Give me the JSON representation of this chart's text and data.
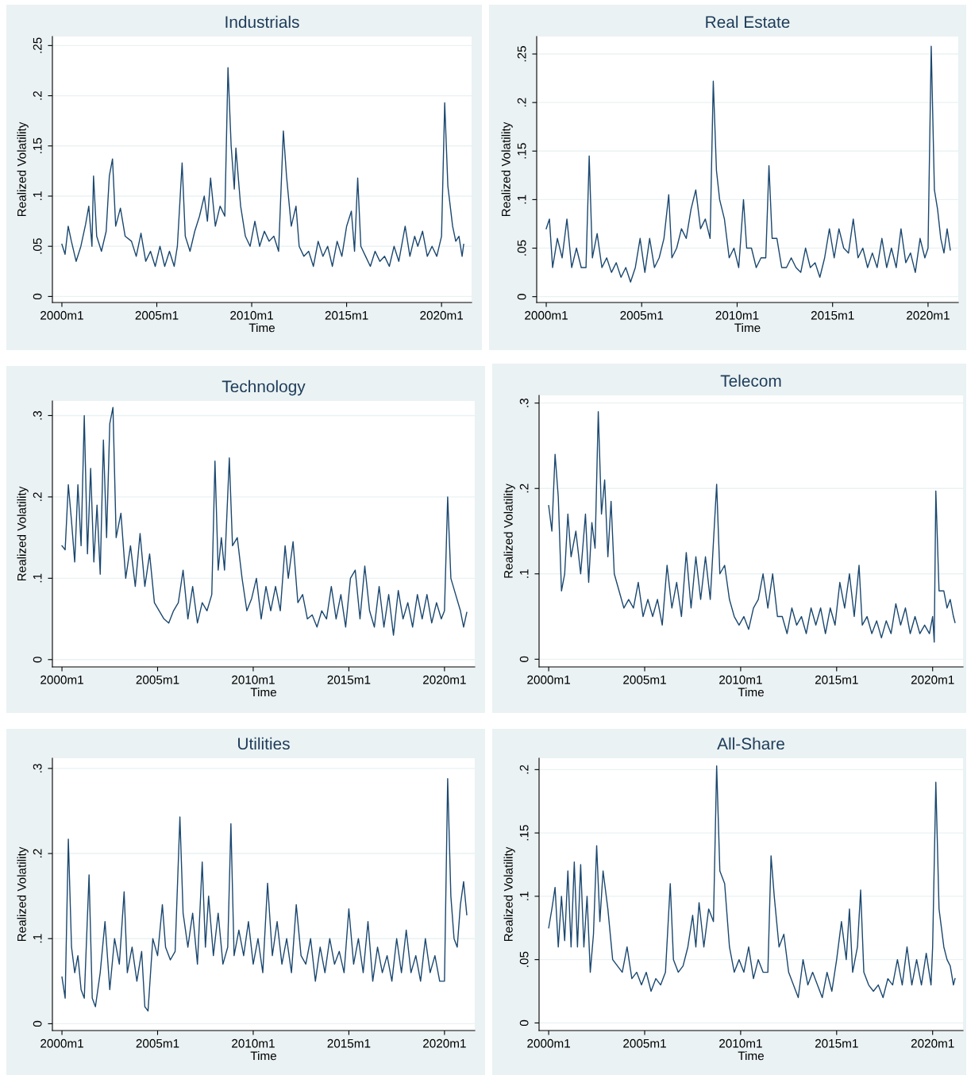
{
  "chart_data": [
    {
      "type": "line",
      "title": "Industrials",
      "xlabel": "Time",
      "ylabel": "Realized Volatility",
      "grid": "y",
      "marker": "none",
      "line_style": "solid",
      "xlim": [
        "1999-07",
        "2021-08"
      ],
      "xticks": [
        {
          "value": "2000-01",
          "label": "2000m1"
        },
        {
          "value": "2005-01",
          "label": "2005m1"
        },
        {
          "value": "2010-01",
          "label": "2010m1"
        },
        {
          "value": "2015-01",
          "label": "2015m1"
        },
        {
          "value": "2020-01",
          "label": "2020m1"
        }
      ],
      "ylim": [
        -0.006,
        0.259
      ],
      "yticks": [
        0,
        {
          "value": 0.05,
          "label": ".05"
        },
        {
          "value": 0.1,
          "label": ".1"
        },
        {
          "value": 0.15,
          "label": ".15"
        },
        {
          "value": 0.2,
          "label": ".2"
        },
        {
          "value": 0.25,
          "label": ".25"
        }
      ],
      "series": [
        {
          "color": "#1a476f",
          "x": [
            "2000-01",
            "2000-03",
            "2000-05",
            "2000-07",
            "2000-10",
            "2001-01",
            "2001-04",
            "2001-06",
            "2001-08",
            "2001-09",
            "2001-11",
            "2002-02",
            "2002-05",
            "2002-07",
            "2002-09",
            "2002-11",
            "2003-02",
            "2003-05",
            "2003-09",
            "2003-12",
            "2004-03",
            "2004-06",
            "2004-09",
            "2004-12",
            "2005-03",
            "2005-06",
            "2005-09",
            "2005-12",
            "2006-02",
            "2006-05",
            "2006-07",
            "2006-10",
            "2007-01",
            "2007-04",
            "2007-07",
            "2007-09",
            "2007-11",
            "2008-02",
            "2008-05",
            "2008-08",
            "2008-10",
            "2008-12",
            "2009-02",
            "2009-03",
            "2009-06",
            "2009-09",
            "2009-12",
            "2010-03",
            "2010-06",
            "2010-09",
            "2010-12",
            "2011-03",
            "2011-06",
            "2011-09",
            "2011-11",
            "2012-02",
            "2012-05",
            "2012-07",
            "2012-10",
            "2013-01",
            "2013-04",
            "2013-07",
            "2013-10",
            "2014-01",
            "2014-04",
            "2014-07",
            "2014-10",
            "2015-01",
            "2015-04",
            "2015-06",
            "2015-08",
            "2015-10",
            "2016-01",
            "2016-04",
            "2016-07",
            "2016-10",
            "2017-01",
            "2017-04",
            "2017-07",
            "2017-10",
            "2018-02",
            "2018-05",
            "2018-08",
            "2018-10",
            "2019-01",
            "2019-04",
            "2019-07",
            "2019-10",
            "2020-01",
            "2020-03",
            "2020-05",
            "2020-08",
            "2020-10",
            "2020-12",
            "2021-02",
            "2021-03"
          ],
          "values": [
            0.052,
            0.042,
            0.07,
            0.055,
            0.035,
            0.05,
            0.072,
            0.09,
            0.05,
            0.12,
            0.06,
            0.045,
            0.065,
            0.12,
            0.137,
            0.07,
            0.088,
            0.06,
            0.055,
            0.04,
            0.063,
            0.035,
            0.045,
            0.03,
            0.05,
            0.03,
            0.045,
            0.03,
            0.05,
            0.133,
            0.06,
            0.045,
            0.065,
            0.08,
            0.1,
            0.075,
            0.118,
            0.07,
            0.09,
            0.08,
            0.228,
            0.15,
            0.107,
            0.148,
            0.09,
            0.06,
            0.05,
            0.075,
            0.05,
            0.065,
            0.055,
            0.06,
            0.045,
            0.165,
            0.12,
            0.07,
            0.09,
            0.05,
            0.04,
            0.045,
            0.03,
            0.055,
            0.04,
            0.05,
            0.03,
            0.055,
            0.04,
            0.07,
            0.085,
            0.045,
            0.118,
            0.05,
            0.04,
            0.03,
            0.045,
            0.035,
            0.04,
            0.03,
            0.05,
            0.035,
            0.07,
            0.04,
            0.06,
            0.05,
            0.065,
            0.04,
            0.05,
            0.04,
            0.06,
            0.193,
            0.11,
            0.07,
            0.055,
            0.06,
            0.04,
            0.052
          ]
        }
      ]
    },
    {
      "type": "line",
      "title": "Real Estate",
      "xlabel": "Time",
      "ylabel": "Realized Volatility",
      "grid": "y",
      "marker": "none",
      "line_style": "solid",
      "xlim": [
        "1999-07",
        "2021-08"
      ],
      "xticks": [
        {
          "value": "2000-01",
          "label": "2000m1"
        },
        {
          "value": "2005-01",
          "label": "2005m1"
        },
        {
          "value": "2010-01",
          "label": "2010m1"
        },
        {
          "value": "2015-01",
          "label": "2015m1"
        },
        {
          "value": "2020-01",
          "label": "2020m1"
        }
      ],
      "ylim": [
        -0.006,
        0.268
      ],
      "yticks": [
        0,
        {
          "value": 0.05,
          "label": ".05"
        },
        {
          "value": 0.1,
          "label": ".1"
        },
        {
          "value": 0.15,
          "label": ".15"
        },
        {
          "value": 0.2,
          "label": ".2"
        },
        {
          "value": 0.25,
          "label": ".25"
        }
      ],
      "series": [
        {
          "color": "#1a476f",
          "x": [
            "2000-01",
            "2000-03",
            "2000-05",
            "2000-08",
            "2000-11",
            "2001-02",
            "2001-05",
            "2001-08",
            "2001-11",
            "2002-02",
            "2002-04",
            "2002-06",
            "2002-09",
            "2002-12",
            "2003-03",
            "2003-06",
            "2003-09",
            "2003-12",
            "2004-03",
            "2004-06",
            "2004-09",
            "2004-12",
            "2005-03",
            "2005-06",
            "2005-09",
            "2005-12",
            "2006-03",
            "2006-06",
            "2006-08",
            "2006-11",
            "2007-02",
            "2007-05",
            "2007-08",
            "2007-11",
            "2008-02",
            "2008-05",
            "2008-08",
            "2008-10",
            "2008-12",
            "2009-02",
            "2009-05",
            "2009-08",
            "2009-11",
            "2010-02",
            "2010-05",
            "2010-07",
            "2010-10",
            "2011-01",
            "2011-04",
            "2011-07",
            "2011-09",
            "2011-11",
            "2012-02",
            "2012-05",
            "2012-08",
            "2012-11",
            "2013-02",
            "2013-05",
            "2013-08",
            "2013-11",
            "2014-02",
            "2014-05",
            "2014-08",
            "2014-11",
            "2015-02",
            "2015-05",
            "2015-08",
            "2015-11",
            "2016-02",
            "2016-05",
            "2016-08",
            "2016-11",
            "2017-02",
            "2017-05",
            "2017-08",
            "2017-11",
            "2018-02",
            "2018-05",
            "2018-08",
            "2018-11",
            "2019-02",
            "2019-05",
            "2019-08",
            "2019-11",
            "2020-01",
            "2020-03",
            "2020-05",
            "2020-07",
            "2020-09",
            "2020-11",
            "2021-01",
            "2021-03"
          ],
          "values": [
            0.07,
            0.08,
            0.03,
            0.06,
            0.04,
            0.08,
            0.03,
            0.05,
            0.03,
            0.03,
            0.145,
            0.04,
            0.065,
            0.03,
            0.04,
            0.025,
            0.035,
            0.02,
            0.03,
            0.015,
            0.03,
            0.06,
            0.025,
            0.06,
            0.03,
            0.04,
            0.06,
            0.105,
            0.04,
            0.05,
            0.07,
            0.06,
            0.09,
            0.11,
            0.07,
            0.08,
            0.06,
            0.222,
            0.13,
            0.1,
            0.08,
            0.04,
            0.05,
            0.03,
            0.1,
            0.05,
            0.05,
            0.03,
            0.04,
            0.04,
            0.135,
            0.06,
            0.06,
            0.03,
            0.03,
            0.04,
            0.03,
            0.025,
            0.05,
            0.03,
            0.035,
            0.02,
            0.04,
            0.07,
            0.04,
            0.07,
            0.05,
            0.045,
            0.08,
            0.04,
            0.05,
            0.03,
            0.045,
            0.03,
            0.06,
            0.03,
            0.05,
            0.03,
            0.07,
            0.035,
            0.045,
            0.025,
            0.06,
            0.04,
            0.05,
            0.258,
            0.11,
            0.09,
            0.06,
            0.045,
            0.07,
            0.048
          ]
        }
      ]
    },
    {
      "type": "line",
      "title": "Technology",
      "xlabel": "Time",
      "ylabel": "Realized Volatility",
      "grid": "y",
      "marker": "none",
      "line_style": "solid",
      "xlim": [
        "1999-07",
        "2021-08"
      ],
      "xticks": [
        {
          "value": "2000-01",
          "label": "2000m1"
        },
        {
          "value": "2005-01",
          "label": "2005m1"
        },
        {
          "value": "2010-01",
          "label": "2010m1"
        },
        {
          "value": "2015-01",
          "label": "2015m1"
        },
        {
          "value": "2020-01",
          "label": "2020m1"
        }
      ],
      "ylim": [
        -0.009,
        0.318
      ],
      "yticks": [
        0,
        {
          "value": 0.1,
          "label": ".1"
        },
        {
          "value": 0.2,
          "label": ".2"
        },
        {
          "value": 0.3,
          "label": ".3"
        }
      ],
      "series": [
        {
          "color": "#1a476f",
          "x": [
            "2000-01",
            "2000-03",
            "2000-05",
            "2000-07",
            "2000-09",
            "2000-11",
            "2001-01",
            "2001-03",
            "2001-05",
            "2001-07",
            "2001-09",
            "2001-11",
            "2002-01",
            "2002-03",
            "2002-05",
            "2002-07",
            "2002-09",
            "2002-11",
            "2003-02",
            "2003-05",
            "2003-08",
            "2003-11",
            "2004-02",
            "2004-05",
            "2004-08",
            "2004-11",
            "2005-02",
            "2005-05",
            "2005-08",
            "2005-11",
            "2006-02",
            "2006-05",
            "2006-08",
            "2006-11",
            "2007-02",
            "2007-05",
            "2007-08",
            "2007-11",
            "2008-01",
            "2008-03",
            "2008-05",
            "2008-07",
            "2008-10",
            "2008-12",
            "2009-03",
            "2009-06",
            "2009-09",
            "2009-12",
            "2010-03",
            "2010-06",
            "2010-09",
            "2010-12",
            "2011-03",
            "2011-06",
            "2011-09",
            "2011-11",
            "2012-02",
            "2012-05",
            "2012-08",
            "2012-11",
            "2013-02",
            "2013-05",
            "2013-08",
            "2013-11",
            "2014-02",
            "2014-05",
            "2014-08",
            "2014-11",
            "2015-02",
            "2015-05",
            "2015-08",
            "2015-11",
            "2016-02",
            "2016-05",
            "2016-08",
            "2016-11",
            "2017-02",
            "2017-05",
            "2017-08",
            "2017-11",
            "2018-02",
            "2018-05",
            "2018-08",
            "2018-11",
            "2019-02",
            "2019-05",
            "2019-08",
            "2019-11",
            "2020-01",
            "2020-03",
            "2020-05",
            "2020-08",
            "2020-11",
            "2021-01",
            "2021-03"
          ],
          "values": [
            0.14,
            0.135,
            0.215,
            0.17,
            0.12,
            0.215,
            0.14,
            0.3,
            0.13,
            0.235,
            0.12,
            0.19,
            0.105,
            0.27,
            0.15,
            0.29,
            0.31,
            0.15,
            0.18,
            0.1,
            0.14,
            0.09,
            0.155,
            0.09,
            0.13,
            0.07,
            0.06,
            0.05,
            0.045,
            0.06,
            0.07,
            0.11,
            0.05,
            0.09,
            0.045,
            0.07,
            0.06,
            0.08,
            0.244,
            0.11,
            0.15,
            0.11,
            0.248,
            0.14,
            0.15,
            0.1,
            0.06,
            0.075,
            0.1,
            0.05,
            0.09,
            0.06,
            0.09,
            0.06,
            0.14,
            0.1,
            0.145,
            0.07,
            0.08,
            0.05,
            0.055,
            0.04,
            0.06,
            0.05,
            0.09,
            0.05,
            0.08,
            0.04,
            0.1,
            0.11,
            0.05,
            0.115,
            0.06,
            0.04,
            0.09,
            0.04,
            0.08,
            0.03,
            0.085,
            0.05,
            0.07,
            0.04,
            0.08,
            0.05,
            0.08,
            0.045,
            0.07,
            0.05,
            0.06,
            0.2,
            0.1,
            0.08,
            0.06,
            0.04,
            0.058
          ]
        }
      ]
    },
    {
      "type": "line",
      "title": "Telecom",
      "xlabel": "Time",
      "ylabel": "Realized Volatility",
      "grid": "y",
      "marker": "none",
      "line_style": "solid",
      "xlim": [
        "1999-07",
        "2021-08"
      ],
      "xticks": [
        {
          "value": "2000-01",
          "label": "2000m1"
        },
        {
          "value": "2005-01",
          "label": "2005m1"
        },
        {
          "value": "2010-01",
          "label": "2010m1"
        },
        {
          "value": "2015-01",
          "label": "2015m1"
        },
        {
          "value": "2020-01",
          "label": "2020m1"
        }
      ],
      "ylim": [
        -0.009,
        0.309
      ],
      "yticks": [
        0,
        {
          "value": 0.1,
          "label": ".1"
        },
        {
          "value": 0.2,
          "label": ".2"
        },
        {
          "value": 0.3,
          "label": ".3"
        }
      ],
      "series": [
        {
          "color": "#1a476f",
          "x": [
            "2000-01",
            "2000-03",
            "2000-05",
            "2000-07",
            "2000-09",
            "2000-11",
            "2001-01",
            "2001-03",
            "2001-06",
            "2001-09",
            "2001-12",
            "2002-02",
            "2002-04",
            "2002-06",
            "2002-08",
            "2002-10",
            "2002-12",
            "2003-02",
            "2003-04",
            "2003-06",
            "2003-09",
            "2003-12",
            "2004-03",
            "2004-06",
            "2004-09",
            "2004-12",
            "2005-03",
            "2005-06",
            "2005-09",
            "2005-12",
            "2006-03",
            "2006-06",
            "2006-09",
            "2006-12",
            "2007-03",
            "2007-06",
            "2007-09",
            "2007-12",
            "2008-03",
            "2008-06",
            "2008-10",
            "2008-12",
            "2009-03",
            "2009-06",
            "2009-09",
            "2009-12",
            "2010-03",
            "2010-06",
            "2010-09",
            "2010-12",
            "2011-03",
            "2011-06",
            "2011-09",
            "2011-12",
            "2012-03",
            "2012-06",
            "2012-09",
            "2012-12",
            "2013-03",
            "2013-06",
            "2013-09",
            "2013-12",
            "2014-03",
            "2014-06",
            "2014-09",
            "2014-12",
            "2015-03",
            "2015-06",
            "2015-09",
            "2015-12",
            "2016-03",
            "2016-05",
            "2016-08",
            "2016-11",
            "2017-02",
            "2017-05",
            "2017-08",
            "2017-11",
            "2018-02",
            "2018-05",
            "2018-08",
            "2018-11",
            "2019-02",
            "2019-05",
            "2019-08",
            "2019-11",
            "2020-01",
            "2020-02",
            "2020-03",
            "2020-05",
            "2020-08",
            "2020-10",
            "2020-12",
            "2021-02",
            "2021-03"
          ],
          "values": [
            0.18,
            0.15,
            0.24,
            0.19,
            0.08,
            0.1,
            0.17,
            0.12,
            0.15,
            0.1,
            0.17,
            0.09,
            0.16,
            0.13,
            0.29,
            0.17,
            0.21,
            0.12,
            0.185,
            0.1,
            0.08,
            0.06,
            0.07,
            0.06,
            0.09,
            0.05,
            0.07,
            0.05,
            0.07,
            0.04,
            0.11,
            0.06,
            0.09,
            0.05,
            0.125,
            0.06,
            0.12,
            0.07,
            0.12,
            0.07,
            0.205,
            0.1,
            0.11,
            0.07,
            0.05,
            0.04,
            0.05,
            0.035,
            0.06,
            0.07,
            0.1,
            0.06,
            0.1,
            0.05,
            0.05,
            0.03,
            0.06,
            0.04,
            0.05,
            0.03,
            0.06,
            0.04,
            0.06,
            0.03,
            0.06,
            0.04,
            0.09,
            0.06,
            0.1,
            0.05,
            0.11,
            0.04,
            0.05,
            0.03,
            0.045,
            0.025,
            0.045,
            0.03,
            0.065,
            0.04,
            0.06,
            0.03,
            0.05,
            0.03,
            0.04,
            0.03,
            0.05,
            0.02,
            0.197,
            0.08,
            0.08,
            0.06,
            0.07,
            0.05,
            0.043
          ]
        }
      ]
    },
    {
      "type": "line",
      "title": "Utilities",
      "xlabel": "Time",
      "ylabel": "Realized Volatility",
      "grid": "y",
      "marker": "none",
      "line_style": "solid",
      "xlim": [
        "1999-07",
        "2021-08"
      ],
      "xticks": [
        {
          "value": "2000-01",
          "label": "2000m1"
        },
        {
          "value": "2005-01",
          "label": "2005m1"
        },
        {
          "value": "2010-01",
          "label": "2010m1"
        },
        {
          "value": "2015-01",
          "label": "2015m1"
        },
        {
          "value": "2020-01",
          "label": "2020m1"
        }
      ],
      "ylim": [
        -0.008,
        0.312
      ],
      "yticks": [
        0,
        {
          "value": 0.1,
          "label": ".1"
        },
        {
          "value": 0.2,
          "label": ".2"
        },
        {
          "value": 0.3,
          "label": ".3"
        }
      ],
      "series": [
        {
          "color": "#1a476f",
          "x": [
            "2000-01",
            "2000-03",
            "2000-05",
            "2000-07",
            "2000-09",
            "2000-11",
            "2001-01",
            "2001-03",
            "2001-06",
            "2001-08",
            "2001-10",
            "2002-01",
            "2002-04",
            "2002-07",
            "2002-10",
            "2003-01",
            "2003-04",
            "2003-06",
            "2003-09",
            "2003-12",
            "2004-03",
            "2004-05",
            "2004-07",
            "2004-10",
            "2005-01",
            "2005-04",
            "2005-06",
            "2005-09",
            "2005-12",
            "2006-03",
            "2006-05",
            "2006-08",
            "2006-11",
            "2007-02",
            "2007-05",
            "2007-07",
            "2007-09",
            "2007-12",
            "2008-03",
            "2008-06",
            "2008-09",
            "2008-11",
            "2009-01",
            "2009-04",
            "2009-07",
            "2009-10",
            "2010-01",
            "2010-04",
            "2010-07",
            "2010-10",
            "2011-01",
            "2011-04",
            "2011-07",
            "2011-10",
            "2012-01",
            "2012-04",
            "2012-07",
            "2012-10",
            "2013-01",
            "2013-04",
            "2013-07",
            "2013-10",
            "2014-01",
            "2014-04",
            "2014-07",
            "2014-10",
            "2015-01",
            "2015-04",
            "2015-07",
            "2015-10",
            "2016-01",
            "2016-04",
            "2016-07",
            "2016-10",
            "2017-01",
            "2017-04",
            "2017-07",
            "2017-10",
            "2018-01",
            "2018-04",
            "2018-07",
            "2018-10",
            "2019-01",
            "2019-04",
            "2019-07",
            "2019-10",
            "2020-01",
            "2020-03",
            "2020-05",
            "2020-07",
            "2020-09",
            "2020-11",
            "2021-01",
            "2021-03"
          ],
          "values": [
            0.055,
            0.03,
            0.217,
            0.09,
            0.06,
            0.08,
            0.04,
            0.03,
            0.175,
            0.03,
            0.02,
            0.06,
            0.12,
            0.04,
            0.1,
            0.07,
            0.155,
            0.06,
            0.09,
            0.05,
            0.085,
            0.02,
            0.015,
            0.1,
            0.08,
            0.14,
            0.09,
            0.075,
            0.085,
            0.243,
            0.13,
            0.09,
            0.13,
            0.07,
            0.19,
            0.09,
            0.15,
            0.08,
            0.13,
            0.07,
            0.09,
            0.235,
            0.08,
            0.11,
            0.08,
            0.12,
            0.07,
            0.1,
            0.06,
            0.165,
            0.08,
            0.12,
            0.07,
            0.1,
            0.06,
            0.14,
            0.08,
            0.07,
            0.1,
            0.05,
            0.09,
            0.06,
            0.1,
            0.07,
            0.085,
            0.06,
            0.135,
            0.07,
            0.1,
            0.06,
            0.12,
            0.05,
            0.09,
            0.06,
            0.08,
            0.05,
            0.1,
            0.06,
            0.11,
            0.06,
            0.08,
            0.05,
            0.1,
            0.06,
            0.08,
            0.05,
            0.05,
            0.288,
            0.15,
            0.1,
            0.09,
            0.14,
            0.167,
            0.128
          ]
        }
      ]
    },
    {
      "type": "line",
      "title": "All-Share",
      "xlabel": "Time",
      "ylabel": "Realized Volatility",
      "grid": "y",
      "marker": "none",
      "line_style": "solid",
      "xlim": [
        "1999-07",
        "2021-08"
      ],
      "xticks": [
        {
          "value": "2000-01",
          "label": "2000m1"
        },
        {
          "value": "2005-01",
          "label": "2005m1"
        },
        {
          "value": "2010-01",
          "label": "2010m1"
        },
        {
          "value": "2015-01",
          "label": "2015m1"
        },
        {
          "value": "2020-01",
          "label": "2020m1"
        }
      ],
      "ylim": [
        -0.006,
        0.209
      ],
      "yticks": [
        0,
        {
          "value": 0.05,
          "label": ".05"
        },
        {
          "value": 0.1,
          "label": ".1"
        },
        {
          "value": 0.15,
          "label": ".15"
        },
        {
          "value": 0.2,
          "label": ".2"
        }
      ],
      "series": [
        {
          "color": "#1a476f",
          "x": [
            "2000-01",
            "2000-03",
            "2000-05",
            "2000-07",
            "2000-09",
            "2000-11",
            "2001-01",
            "2001-03",
            "2001-05",
            "2001-07",
            "2001-09",
            "2001-11",
            "2002-01",
            "2002-03",
            "2002-05",
            "2002-07",
            "2002-09",
            "2002-11",
            "2003-02",
            "2003-05",
            "2003-08",
            "2003-11",
            "2004-02",
            "2004-05",
            "2004-08",
            "2004-11",
            "2005-02",
            "2005-05",
            "2005-08",
            "2005-11",
            "2006-02",
            "2006-05",
            "2006-07",
            "2006-10",
            "2007-01",
            "2007-04",
            "2007-07",
            "2007-09",
            "2007-11",
            "2008-02",
            "2008-05",
            "2008-08",
            "2008-10",
            "2008-12",
            "2009-03",
            "2009-06",
            "2009-09",
            "2009-12",
            "2010-03",
            "2010-06",
            "2010-09",
            "2010-12",
            "2011-03",
            "2011-06",
            "2011-08",
            "2011-10",
            "2012-01",
            "2012-04",
            "2012-07",
            "2012-10",
            "2013-01",
            "2013-04",
            "2013-07",
            "2013-10",
            "2014-01",
            "2014-04",
            "2014-07",
            "2014-10",
            "2015-01",
            "2015-04",
            "2015-07",
            "2015-09",
            "2015-11",
            "2016-02",
            "2016-04",
            "2016-06",
            "2016-09",
            "2016-12",
            "2017-03",
            "2017-06",
            "2017-09",
            "2017-12",
            "2018-03",
            "2018-06",
            "2018-09",
            "2018-12",
            "2019-03",
            "2019-06",
            "2019-09",
            "2019-12",
            "2020-01",
            "2020-03",
            "2020-05",
            "2020-08",
            "2020-10",
            "2020-12",
            "2021-02",
            "2021-03"
          ],
          "values": [
            0.075,
            0.09,
            0.107,
            0.06,
            0.1,
            0.065,
            0.12,
            0.06,
            0.127,
            0.06,
            0.125,
            0.06,
            0.1,
            0.04,
            0.07,
            0.14,
            0.08,
            0.12,
            0.09,
            0.05,
            0.045,
            0.04,
            0.06,
            0.035,
            0.04,
            0.03,
            0.04,
            0.025,
            0.035,
            0.03,
            0.04,
            0.11,
            0.05,
            0.04,
            0.045,
            0.06,
            0.085,
            0.06,
            0.095,
            0.06,
            0.09,
            0.08,
            0.203,
            0.12,
            0.11,
            0.06,
            0.04,
            0.05,
            0.04,
            0.06,
            0.035,
            0.05,
            0.04,
            0.04,
            0.132,
            0.1,
            0.06,
            0.07,
            0.04,
            0.03,
            0.02,
            0.05,
            0.03,
            0.04,
            0.03,
            0.02,
            0.04,
            0.025,
            0.05,
            0.08,
            0.05,
            0.09,
            0.04,
            0.06,
            0.105,
            0.04,
            0.03,
            0.025,
            0.03,
            0.02,
            0.035,
            0.03,
            0.05,
            0.03,
            0.06,
            0.03,
            0.05,
            0.03,
            0.055,
            0.03,
            0.06,
            0.19,
            0.09,
            0.06,
            0.05,
            0.045,
            0.03,
            0.035
          ]
        }
      ]
    }
  ]
}
